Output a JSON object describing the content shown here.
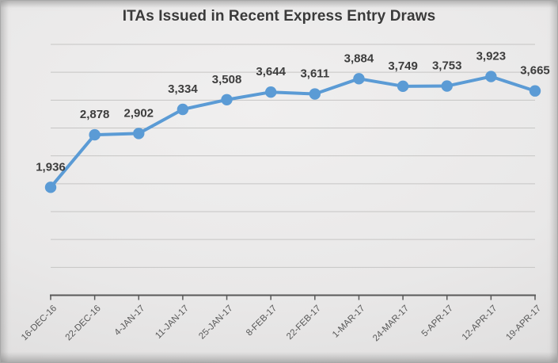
{
  "chart_data": {
    "type": "line",
    "title": "ITAs Issued in Recent Express Entry Draws",
    "categories": [
      "16-DEC-16",
      "22-DEC-16",
      "4-JAN-17",
      "11-JAN-17",
      "25-JAN-17",
      "8-FEB-17",
      "22-FEB-17",
      "1-MAR-17",
      "24-MAR-17",
      "5-APR-17",
      "12-APR-17",
      "19-APR-17"
    ],
    "values": [
      1936,
      2878,
      2902,
      3334,
      3508,
      3644,
      3611,
      3884,
      3749,
      3753,
      3923,
      3665
    ],
    "labels": [
      "1,936",
      "2,878",
      "2,902",
      "3,334",
      "3,508",
      "3,644",
      "3,611",
      "3,884",
      "3,749",
      "3,753",
      "3,923",
      "3,665"
    ],
    "xlabel": "",
    "ylabel": "",
    "ylim": [
      0,
      4500
    ],
    "grid_step": 500,
    "grid": true,
    "legend": "none",
    "colors": {
      "line": "#5B9BD5",
      "marker": "#5B9BD5",
      "data_label": "#3d3d3d",
      "axis": "#595959",
      "gridline": "#c6c5c4",
      "title": "#3a3a3a"
    }
  }
}
